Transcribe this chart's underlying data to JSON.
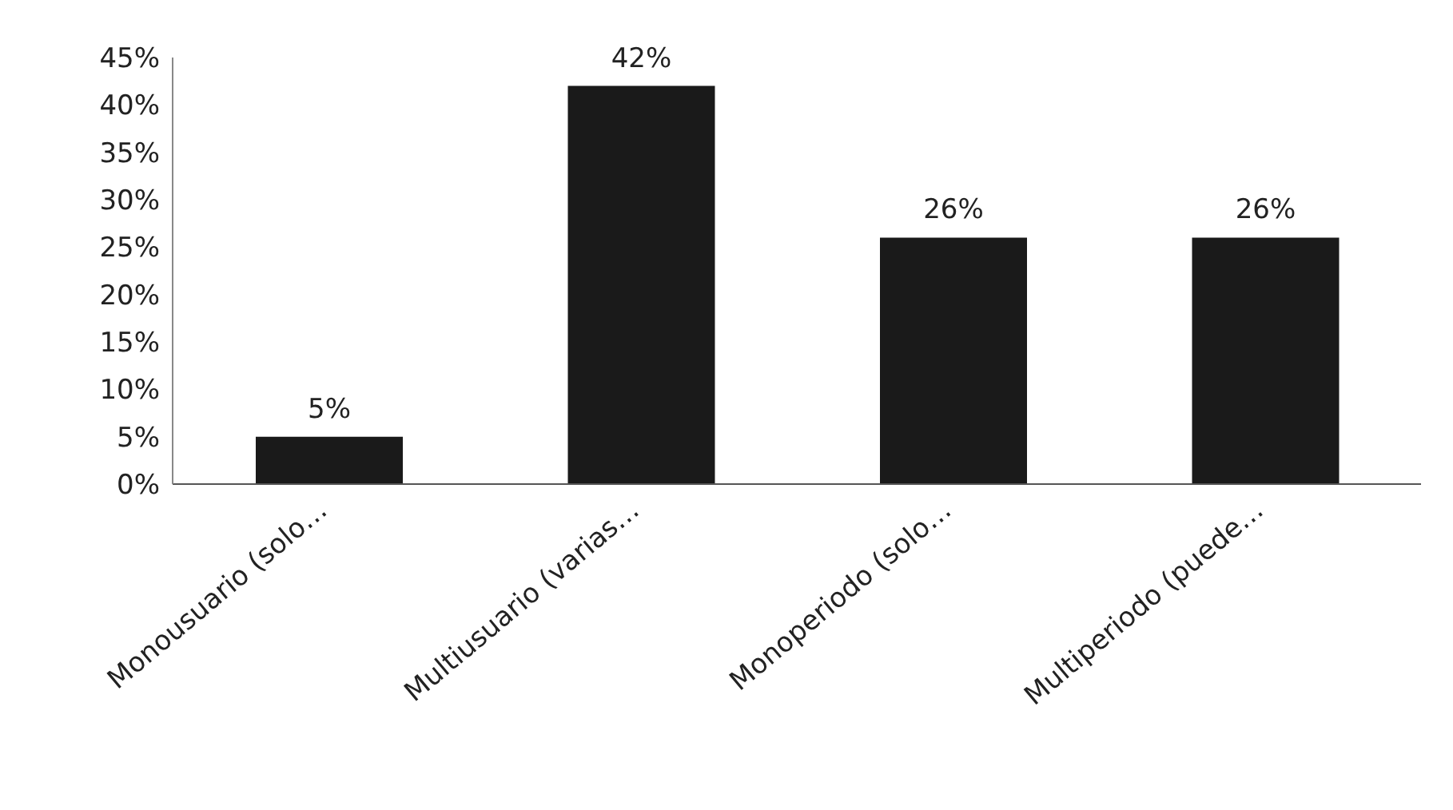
{
  "chart_data": {
    "type": "bar",
    "categories": [
      "Monousuario (solo…",
      "Multiusuario (varias…",
      "Monoperiodo (solo…",
      "Multiperiodo (puede…"
    ],
    "values": [
      5,
      42,
      26,
      26
    ],
    "value_labels": [
      "5%",
      "42%",
      "26%",
      "26%"
    ],
    "color": "#1a1a1a",
    "ylim": [
      0,
      45
    ],
    "yticks": [
      {
        "value": 0,
        "label": "0%"
      },
      {
        "value": 5,
        "label": "5%"
      },
      {
        "value": 10,
        "label": "10%"
      },
      {
        "value": 15,
        "label": "15%"
      },
      {
        "value": 20,
        "label": "20%"
      },
      {
        "value": 25,
        "label": "25%"
      },
      {
        "value": 30,
        "label": "30%"
      },
      {
        "value": 35,
        "label": "35%"
      },
      {
        "value": 40,
        "label": "40%"
      },
      {
        "value": 45,
        "label": "45%"
      }
    ],
    "grid": false,
    "legend": false
  }
}
